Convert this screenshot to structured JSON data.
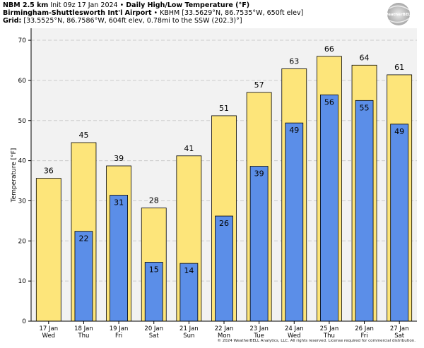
{
  "header": {
    "model": "NBM 2.5 km",
    "init": "Init 09z 17 Jan 2024",
    "sep": "•",
    "product": "Daily High/Low Temperature (°F)",
    "station_name": "Birmingham-Shuttlesworth Int'l Airport",
    "station_info": "KBHM [33.5629°N, 86.7535°W, 650ft elev]",
    "grid_label": "Grid",
    "grid_info": "[33.5525°N, 86.7586°W, 604ft elev, 0.78mi to the SSW (202.3)°]"
  },
  "logo": {
    "text": "WeatherBELL"
  },
  "copyright": "© 2024 WeatherBELL Analytics, LLC. All rights reserved. License required for commercial distribution.",
  "colors": {
    "high": "#fde57a",
    "low": "#5b8ee8",
    "grid": "#cccccc",
    "plot_bg": "#f2f2f2"
  },
  "chart_data": {
    "type": "bar",
    "title": "Daily High/Low Temperature (°F)",
    "xlabel": "",
    "ylabel": "Temperature [°F]",
    "ylim": [
      0,
      73
    ],
    "yticks": [
      0,
      10,
      20,
      30,
      40,
      50,
      60,
      70
    ],
    "categories": [
      {
        "date": "17 Jan",
        "day": "Wed"
      },
      {
        "date": "18 Jan",
        "day": "Thu"
      },
      {
        "date": "19 Jan",
        "day": "Fri"
      },
      {
        "date": "20 Jan",
        "day": "Sat"
      },
      {
        "date": "21 Jan",
        "day": "Sun"
      },
      {
        "date": "22 Jan",
        "day": "Mon"
      },
      {
        "date": "23 Jan",
        "day": "Tue"
      },
      {
        "date": "24 Jan",
        "day": "Wed"
      },
      {
        "date": "25 Jan",
        "day": "Thu"
      },
      {
        "date": "26 Jan",
        "day": "Fri"
      },
      {
        "date": "27 Jan",
        "day": "Sat"
      }
    ],
    "series": [
      {
        "name": "High",
        "values": [
          35.6,
          44.5,
          38.7,
          28.2,
          41.2,
          51.2,
          57.0,
          62.9,
          66.0,
          63.8,
          61.4
        ],
        "labels": [
          "36",
          "45",
          "39",
          "28",
          "41",
          "51",
          "57",
          "63",
          "66",
          "64",
          "61"
        ]
      },
      {
        "name": "Low",
        "values": [
          null,
          22.4,
          31.4,
          14.7,
          14.4,
          26.2,
          38.6,
          49.4,
          56.4,
          55.0,
          49.1
        ],
        "labels": [
          "",
          "22",
          "31",
          "15",
          "14",
          "26",
          "39",
          "49",
          "56",
          "55",
          "49"
        ]
      }
    ]
  }
}
